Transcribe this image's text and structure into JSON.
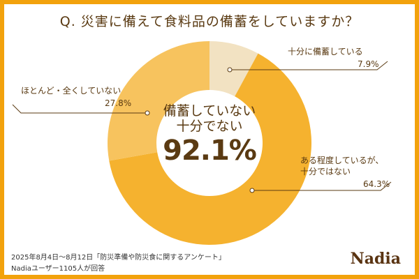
{
  "title": "Q. 災害に備えて食料品の備蓄をしていますか？",
  "chart_data": {
    "type": "pie",
    "title": "Q. 災害に備えて食料品の備蓄をしていますか？",
    "slices": [
      {
        "label": "十分に備蓄している",
        "value": 7.9,
        "value_label": "7.9%",
        "color": "#f2e2c2"
      },
      {
        "label": "ある程度しているが、十分ではない",
        "label_line2": "十分ではない",
        "label_line1": "ある程度しているが、",
        "value": 64.3,
        "value_label": "64.3%",
        "color": "#f5b22f"
      },
      {
        "label": "ほとんど・全くしていない",
        "value": 27.8,
        "value_label": "27.8%",
        "color": "#f7c35e"
      }
    ],
    "center": {
      "line1": "備蓄していない",
      "line2": "十分でない",
      "value": "92.1%"
    }
  },
  "footer": {
    "line1": "2025年8月4日～8月12日「防災準備や防災食に関するアンケート」",
    "line2": "Nadiaユーザー1105人が回答"
  },
  "logo": "Nadia"
}
